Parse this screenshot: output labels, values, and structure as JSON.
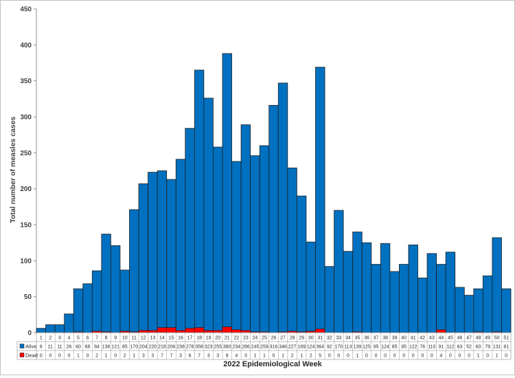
{
  "chart_data": {
    "type": "bar",
    "stacked": true,
    "title": "",
    "xlabel": "2022 Epidemiological Week",
    "ylabel": "Total number of measles cases",
    "ylim": [
      0,
      450
    ],
    "yticks": [
      0,
      50,
      100,
      150,
      200,
      250,
      300,
      350,
      400,
      450
    ],
    "grid": false,
    "legend_placement": "data-table-left",
    "categories": [
      "1",
      "2",
      "3",
      "4",
      "5",
      "6",
      "7",
      "8",
      "9",
      "10",
      "11",
      "12",
      "13",
      "14",
      "15",
      "16",
      "17",
      "18",
      "19",
      "20",
      "21",
      "22",
      "23",
      "24",
      "25",
      "26",
      "27",
      "28",
      "29",
      "30",
      "31",
      "32",
      "33",
      "34",
      "35",
      "36",
      "37",
      "38",
      "39",
      "40",
      "41",
      "42",
      "43",
      "44",
      "45",
      "46",
      "47",
      "48",
      "49",
      "50",
      "51"
    ],
    "series": [
      {
        "name": "Alive",
        "color": "#0070c0",
        "values": [
          6,
          11,
          11,
          26,
          60,
          68,
          84,
          136,
          121,
          85,
          170,
          204,
          220,
          218,
          206,
          238,
          278,
          358,
          323,
          255,
          380,
          234,
          286,
          245,
          259,
          316,
          346,
          227,
          189,
          124,
          364,
          92,
          170,
          113,
          139,
          125,
          95,
          124,
          85,
          95,
          122,
          76,
          110,
          91,
          112,
          63,
          52,
          60,
          79,
          131,
          61
        ]
      },
      {
        "name": "Dead",
        "color": "#ff0000",
        "values": [
          0,
          0,
          0,
          0,
          1,
          0,
          2,
          1,
          0,
          2,
          1,
          3,
          3,
          7,
          7,
          3,
          6,
          7,
          3,
          3,
          8,
          4,
          3,
          1,
          1,
          0,
          1,
          2,
          1,
          2,
          5,
          0,
          0,
          0,
          1,
          0,
          0,
          0,
          0,
          0,
          0,
          0,
          0,
          4,
          0,
          0,
          0,
          1,
          0,
          1,
          0
        ]
      }
    ]
  }
}
